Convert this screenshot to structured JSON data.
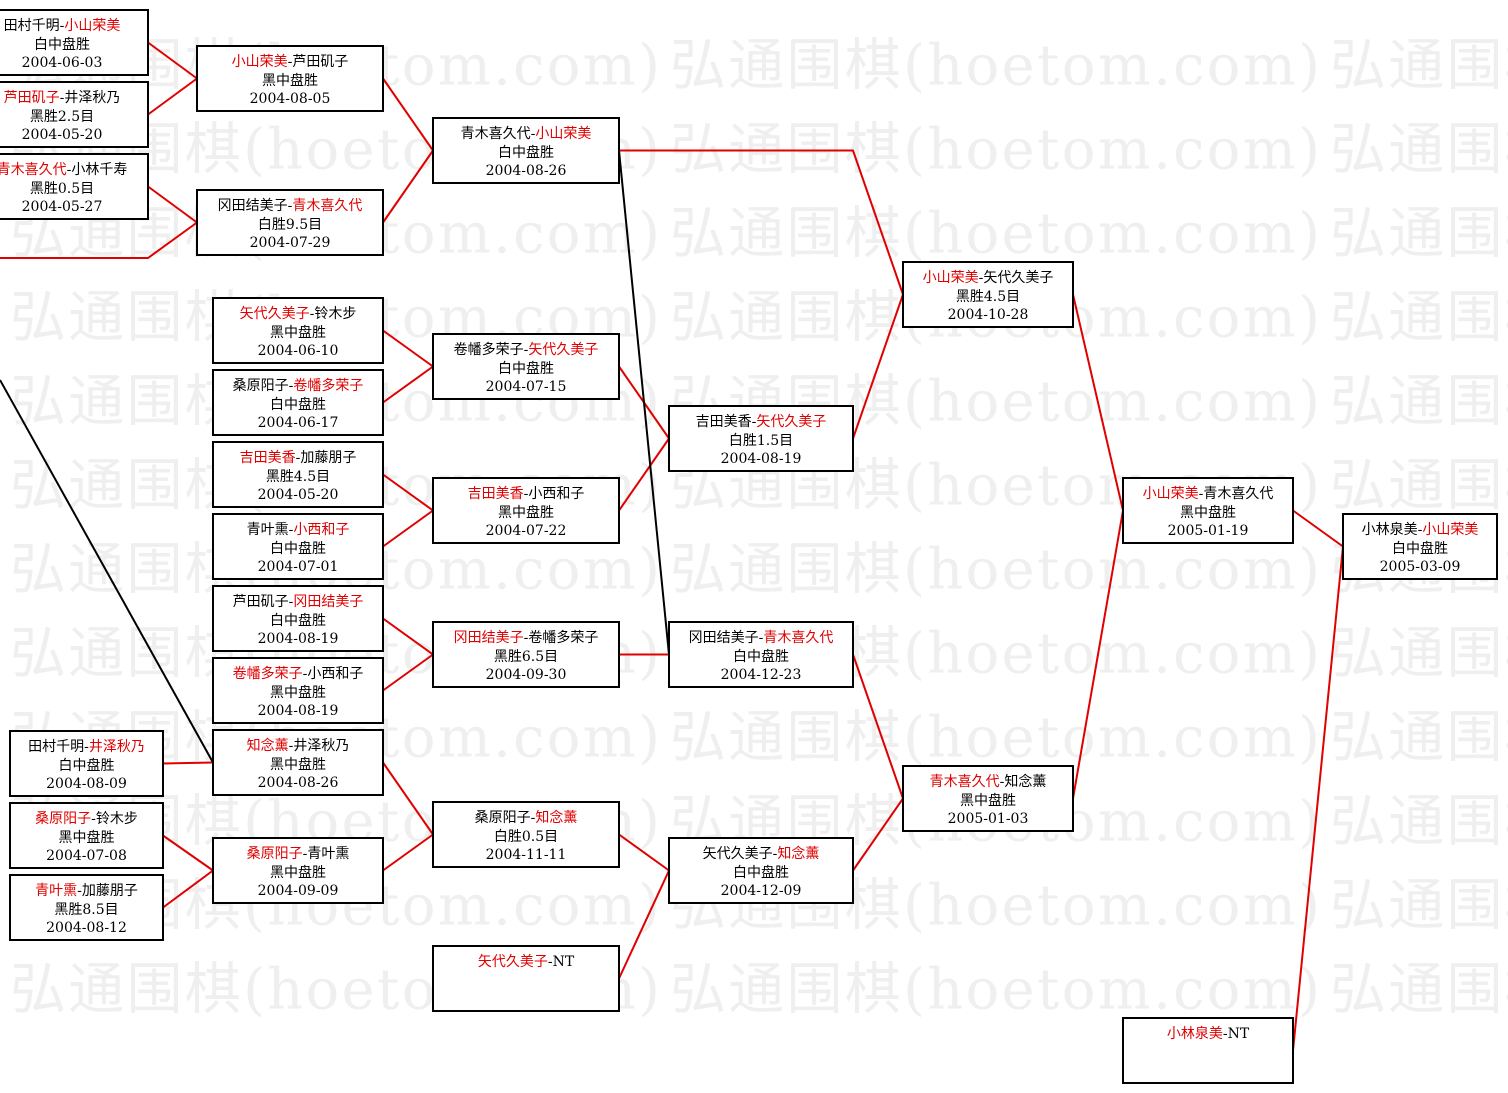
{
  "watermark": "弘通围棋(hoetom.com)",
  "separator": "-",
  "matches": [
    {
      "players": [
        "田村千明",
        "小山荣美"
      ],
      "winner": 1,
      "result": "白中盘胜",
      "date": "2004-06-03"
    },
    {
      "players": [
        "芦田矶子",
        "井泽秋乃"
      ],
      "winner": 0,
      "result": "黑胜2.5目",
      "date": "2004-05-20"
    },
    {
      "players": [
        "青木喜久代",
        "小林千寿"
      ],
      "winner": 0,
      "result": "黑胜0.5目",
      "date": "2004-05-27"
    },
    {
      "players": [
        "田村千明",
        "井泽秋乃"
      ],
      "winner": 1,
      "result": "白中盘胜",
      "date": "2004-08-09"
    },
    {
      "players": [
        "桑原阳子",
        "铃木步"
      ],
      "winner": 0,
      "result": "黑中盘胜",
      "date": "2004-07-08"
    },
    {
      "players": [
        "青叶熏",
        "加藤朋子"
      ],
      "winner": 0,
      "result": "黑胜8.5目",
      "date": "2004-08-12"
    },
    {
      "players": [
        "小山荣美",
        "芦田矶子"
      ],
      "winner": 0,
      "result": "黑中盘胜",
      "date": "2004-08-05"
    },
    {
      "players": [
        "冈田结美子",
        "青木喜久代"
      ],
      "winner": 1,
      "result": "白胜9.5目",
      "date": "2004-07-29"
    },
    {
      "players": [
        "矢代久美子",
        "铃木步"
      ],
      "winner": 0,
      "result": "黑中盘胜",
      "date": "2004-06-10"
    },
    {
      "players": [
        "桑原阳子",
        "卷幡多荣子"
      ],
      "winner": 1,
      "result": "白中盘胜",
      "date": "2004-06-17"
    },
    {
      "players": [
        "吉田美香",
        "加藤朋子"
      ],
      "winner": 0,
      "result": "黑胜4.5目",
      "date": "2004-05-20"
    },
    {
      "players": [
        "青叶熏",
        "小西和子"
      ],
      "winner": 1,
      "result": "白中盘胜",
      "date": "2004-07-01"
    },
    {
      "players": [
        "芦田矶子",
        "冈田结美子"
      ],
      "winner": 1,
      "result": "白中盘胜",
      "date": "2004-08-19"
    },
    {
      "players": [
        "卷幡多荣子",
        "小西和子"
      ],
      "winner": 0,
      "result": "黑中盘胜",
      "date": "2004-08-19"
    },
    {
      "players": [
        "知念薰",
        "井泽秋乃"
      ],
      "winner": 0,
      "result": "黑中盘胜",
      "date": "2004-08-26"
    },
    {
      "players": [
        "桑原阳子",
        "青叶熏"
      ],
      "winner": 0,
      "result": "黑中盘胜",
      "date": "2004-09-09"
    },
    {
      "players": [
        "青木喜久代",
        "小山荣美"
      ],
      "winner": 1,
      "result": "白中盘胜",
      "date": "2004-08-26"
    },
    {
      "players": [
        "卷幡多荣子",
        "矢代久美子"
      ],
      "winner": 1,
      "result": "白中盘胜",
      "date": "2004-07-15"
    },
    {
      "players": [
        "吉田美香",
        "小西和子"
      ],
      "winner": 0,
      "result": "黑中盘胜",
      "date": "2004-07-22"
    },
    {
      "players": [
        "冈田结美子",
        "卷幡多荣子"
      ],
      "winner": 0,
      "result": "黑胜6.5目",
      "date": "2004-09-30"
    },
    {
      "players": [
        "桑原阳子",
        "知念薰"
      ],
      "winner": 1,
      "result": "白胜0.5目",
      "date": "2004-11-11"
    },
    {
      "players": [
        "矢代久美子",
        "NT"
      ],
      "winner": 0
    },
    {
      "players": [
        "吉田美香",
        "矢代久美子"
      ],
      "winner": 1,
      "result": "白胜1.5目",
      "date": "2004-08-19"
    },
    {
      "players": [
        "冈田结美子",
        "青木喜久代"
      ],
      "winner": 1,
      "result": "白中盘胜",
      "date": "2004-12-23"
    },
    {
      "players": [
        "矢代久美子",
        "知念薰"
      ],
      "winner": 1,
      "result": "白中盘胜",
      "date": "2004-12-09"
    },
    {
      "players": [
        "小山荣美",
        "矢代久美子"
      ],
      "winner": 0,
      "result": "黑胜4.5目",
      "date": "2004-10-28"
    },
    {
      "players": [
        "青木喜久代",
        "知念薰"
      ],
      "winner": 0,
      "result": "黑中盘胜",
      "date": "2005-01-03"
    },
    {
      "players": [
        "小山荣美",
        "青木喜久代"
      ],
      "winner": 0,
      "result": "黑中盘胜",
      "date": "2005-01-19"
    },
    {
      "players": [
        "小林泉美",
        "NT"
      ],
      "winner": 0
    },
    {
      "players": [
        "小林泉美",
        "小山荣美"
      ],
      "winner": 1,
      "result": "白中盘胜",
      "date": "2005-03-09"
    }
  ]
}
